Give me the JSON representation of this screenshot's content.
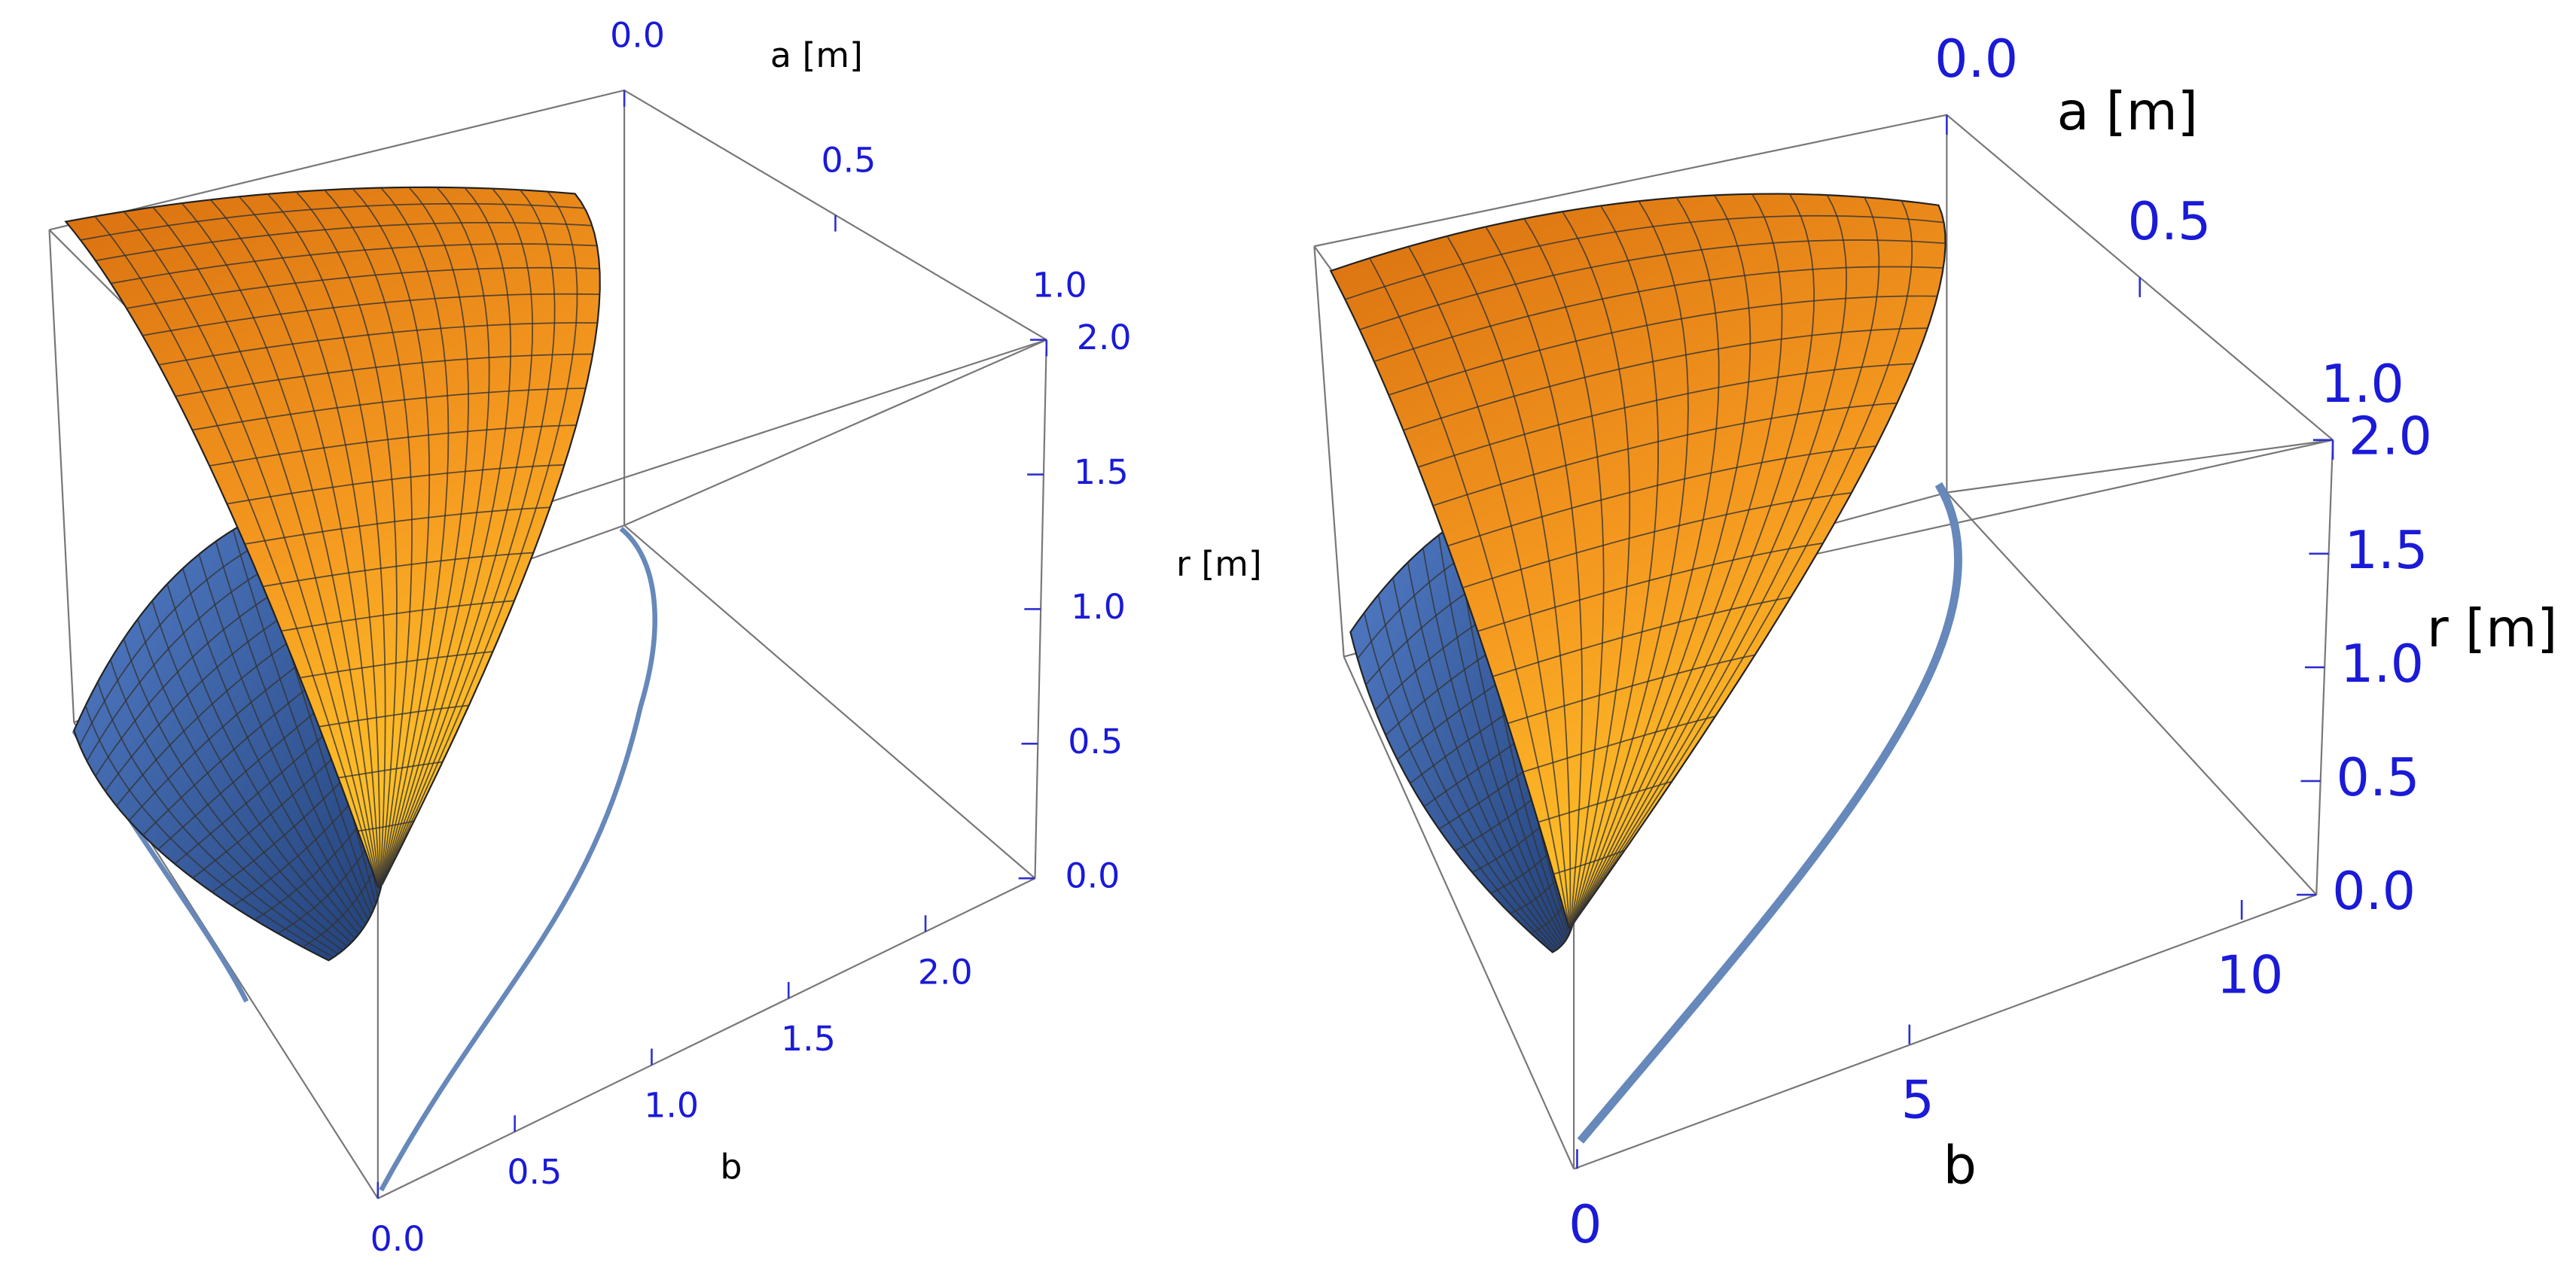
{
  "chart_data": [
    {
      "type": "surface3d",
      "xlabel": "b",
      "ylabel": "a [m]",
      "zlabel": "r [m]",
      "xlim": [
        0,
        2.4
      ],
      "xticks": [
        {
          "value": 0,
          "label": "0.0"
        },
        {
          "value": 0.5,
          "label": "0.5"
        },
        {
          "value": 1,
          "label": "1.0"
        },
        {
          "value": 1.5,
          "label": "1.5"
        },
        {
          "value": 2,
          "label": "2.0"
        }
      ],
      "ylim": [
        0,
        1
      ],
      "yticks": [
        {
          "value": 0,
          "label": "0.0"
        },
        {
          "value": 0.5,
          "label": "0.5"
        },
        {
          "value": 1,
          "label": "1.0"
        }
      ],
      "zlim": [
        0,
        2
      ],
      "zticks": [
        {
          "value": 0,
          "label": "0.0"
        },
        {
          "value": 0.5,
          "label": "0.5"
        },
        {
          "value": 1,
          "label": "1.0"
        },
        {
          "value": 1.5,
          "label": "1.5"
        },
        {
          "value": 2,
          "label": "2.0"
        }
      ]
    },
    {
      "type": "surface3d",
      "xlabel": "b",
      "ylabel": "a [m]",
      "zlabel": "r [m]",
      "xlim": [
        0,
        11
      ],
      "xticks": [
        0,
        5,
        10
      ],
      "ylim": [
        0,
        1
      ],
      "yticks": [
        {
          "value": 0,
          "label": "0.0"
        },
        {
          "value": 0.5,
          "label": "0.5"
        },
        {
          "value": 1,
          "label": "1.0"
        }
      ],
      "zlim": [
        0,
        2
      ],
      "zticks": [
        {
          "value": 0,
          "label": "0.0"
        },
        {
          "value": 0.5,
          "label": "0.5"
        },
        {
          "value": 1,
          "label": "1.0"
        },
        {
          "value": 1.5,
          "label": "1.5"
        },
        {
          "value": 2,
          "label": "2.0"
        }
      ]
    }
  ]
}
